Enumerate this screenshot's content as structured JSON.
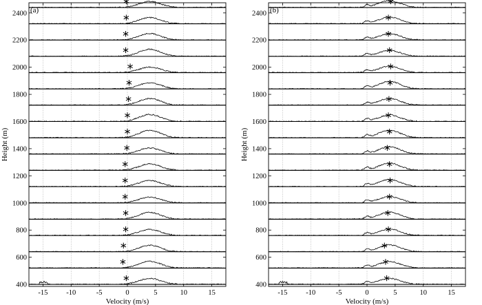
{
  "chart_data": [
    {
      "type": "line",
      "panel_label": "(a)",
      "xlabel": "Velocity (m/s)",
      "ylabel": "Height (m)",
      "xlim": [
        -17.5,
        17.5
      ],
      "ylim": [
        385,
        2475
      ],
      "x_ticks": [
        -15,
        -10,
        -5,
        0,
        5,
        10,
        15
      ],
      "y_ticks": [
        400,
        600,
        800,
        1000,
        1200,
        1400,
        1600,
        1800,
        2000,
        2200,
        2400
      ],
      "grid": "vertical",
      "range_gate_heights": [
        400,
        520,
        640,
        760,
        880,
        1000,
        1120,
        1240,
        1360,
        1480,
        1600,
        1720,
        1840,
        1960,
        2080,
        2200,
        2320,
        2440
      ],
      "spectrum_peak_center_m_s": 4,
      "mean_velocity_m_s": [
        -0.2,
        -0.8,
        -0.7,
        -0.3,
        -0.3,
        -0.4,
        -0.4,
        -0.4,
        -0.1,
        0,
        0,
        0.2,
        0.3,
        0.5,
        -0.3,
        -0.3,
        -0.2,
        -0.2
      ]
    },
    {
      "type": "line",
      "panel_label": "(b)",
      "xlabel": "Velocity (m/s)",
      "ylabel": "Height (m)",
      "xlim": [
        -17.5,
        17.5
      ],
      "ylim": [
        385,
        2475
      ],
      "x_ticks": [
        -15,
        -10,
        -5,
        0,
        5,
        10,
        15
      ],
      "y_ticks": [
        400,
        600,
        800,
        1000,
        1200,
        1400,
        1600,
        1800,
        2000,
        2200,
        2400
      ],
      "grid": "vertical",
      "range_gate_heights": [
        400,
        520,
        640,
        760,
        880,
        1000,
        1120,
        1240,
        1360,
        1480,
        1600,
        1720,
        1840,
        1960,
        2080,
        2200,
        2320,
        2440
      ],
      "spectrum_peak_center_m_s": 4,
      "mean_velocity_m_s": [
        3.5,
        3.3,
        3.1,
        3.8,
        3.7,
        4.0,
        4.1,
        4.0,
        3.6,
        4.0,
        3.8,
        3.9,
        4.1,
        4.2,
        4.0,
        3.8,
        3.8,
        4.2
      ]
    }
  ]
}
